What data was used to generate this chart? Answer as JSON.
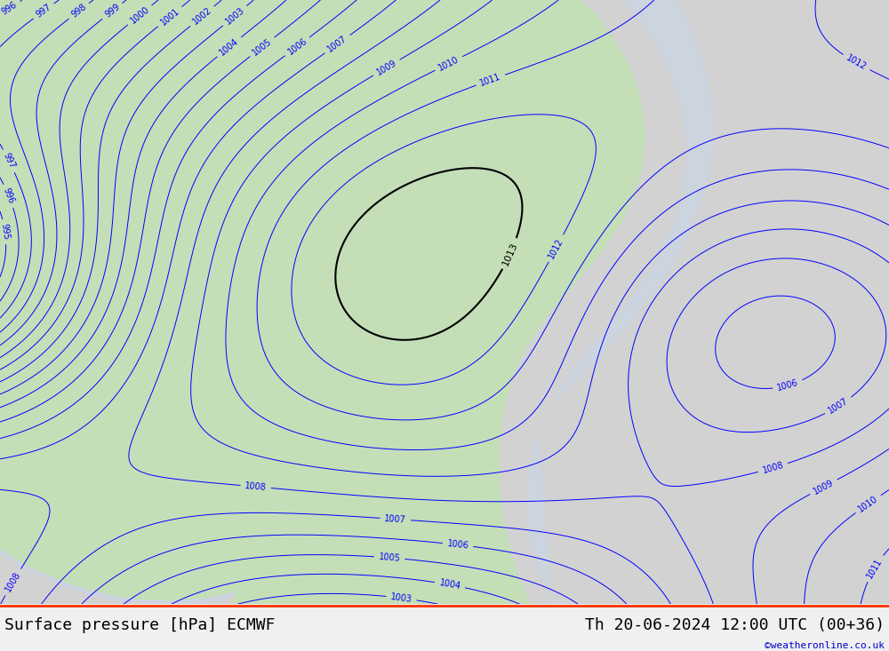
{
  "title_left": "Surface pressure [hPa] ECMWF",
  "title_right": "Th 20-06-2024 12:00 UTC (00+36)",
  "watermark": "©weatheronline.co.uk",
  "bg_color_ocean": "#ccd4e0",
  "bg_color_land_green": "#c4deb8",
  "bg_color_land_gray": "#d2d2d2",
  "isobar_color_blue": "#0000ff",
  "isobar_color_red": "#ff0000",
  "isobar_color_black": "#000000",
  "bottom_bar_color": "#f0f0f0",
  "figsize": [
    10.0,
    7.33
  ],
  "dpi": 100,
  "bottom_text_color": "#000000",
  "watermark_color": "#0000cc",
  "separator_color": "#ff3300"
}
